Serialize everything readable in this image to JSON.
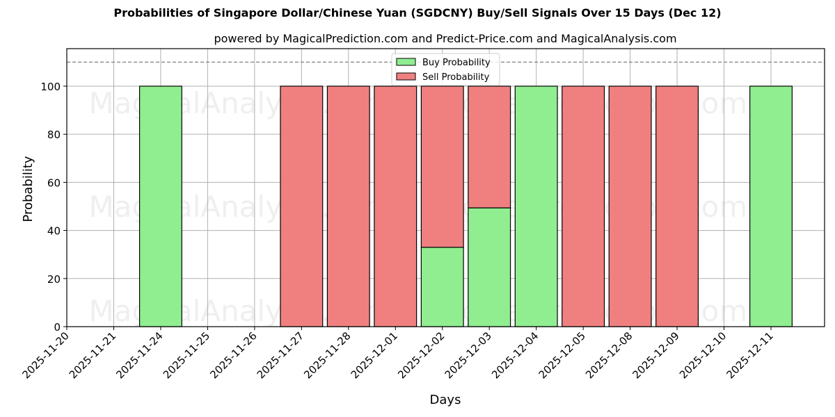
{
  "title": "Probabilities of Singapore Dollar/Chinese Yuan (SGDCNY) Buy/Sell Signals Over 15 Days (Dec 12)",
  "subtitle": "powered by MagicalPrediction.com and Predict-Price.com and MagicalAnalysis.com",
  "watermarks": [
    "MagicalAnalysis.com",
    "MagicalPrediction.com"
  ],
  "colors": {
    "buy": "#90ee90",
    "sell": "#f08080",
    "edge": "#000000",
    "grid": "#b0b0b0",
    "threshold": "#808080"
  },
  "chart_data": {
    "type": "bar",
    "stacked": true,
    "title": "Probabilities of Singapore Dollar/Chinese Yuan (SGDCNY) Buy/Sell Signals Over 15 Days (Dec 12)",
    "subtitle": "powered by MagicalPrediction.com and Predict-Price.com and MagicalAnalysis.com",
    "xlabel": "Days",
    "ylabel": "Probability",
    "ylim": [
      0,
      115.6
    ],
    "yticks": [
      0,
      20,
      40,
      60,
      80,
      100
    ],
    "grid": true,
    "legend_position": "upper center",
    "threshold_line": {
      "y": 110,
      "style": "dashed"
    },
    "categories": [
      "2025-11-20",
      "2025-11-21",
      "2025-11-24",
      "2025-11-25",
      "2025-11-26",
      "2025-11-27",
      "2025-11-28",
      "2025-12-01",
      "2025-12-02",
      "2025-12-03",
      "2025-12-04",
      "2025-12-05",
      "2025-12-08",
      "2025-12-09",
      "2025-12-10",
      "2025-12-11"
    ],
    "series": [
      {
        "name": "Buy Probability",
        "values": [
          0,
          0,
          100,
          0,
          0,
          0,
          0,
          0,
          33,
          49.4,
          100,
          0,
          0,
          0,
          0,
          100
        ]
      },
      {
        "name": "Sell Probability",
        "values": [
          0,
          0,
          0,
          0,
          0,
          100,
          100,
          100,
          67,
          50.6,
          0,
          100,
          100,
          100,
          0,
          0
        ]
      }
    ]
  }
}
